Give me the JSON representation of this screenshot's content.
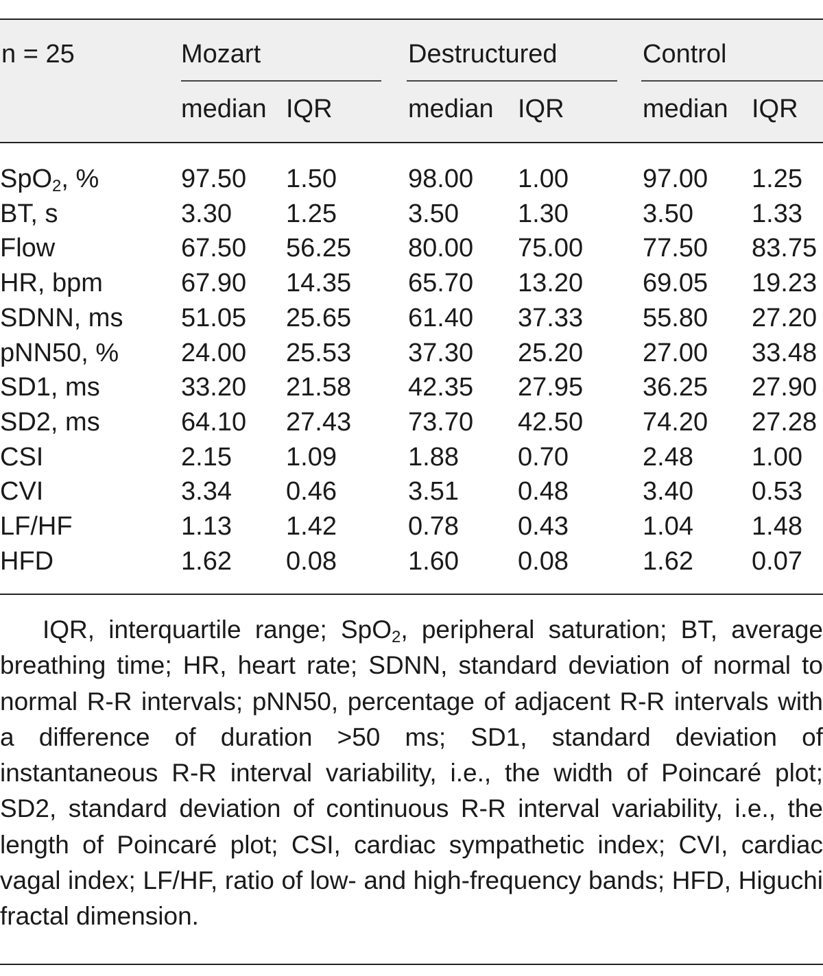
{
  "table": {
    "n_label": "n = 25",
    "groups": [
      "Mozart",
      "Destructured",
      "Control"
    ],
    "sub_headers": [
      "median",
      "IQR"
    ],
    "rows": [
      {
        "label": "SpO",
        "label_sub": "2",
        "label_suffix": ", %",
        "values": [
          "97.50",
          "1.50",
          "98.00",
          "1.00",
          "97.00",
          "1.25"
        ]
      },
      {
        "label": "BT, s",
        "label_sub": "",
        "label_suffix": "",
        "values": [
          "3.30",
          "1.25",
          "3.50",
          "1.30",
          "3.50",
          "1.33"
        ]
      },
      {
        "label": "Flow",
        "label_sub": "",
        "label_suffix": "",
        "values": [
          "67.50",
          "56.25",
          "80.00",
          "75.00",
          "77.50",
          "83.75"
        ]
      },
      {
        "label": "HR, bpm",
        "label_sub": "",
        "label_suffix": "",
        "values": [
          "67.90",
          "14.35",
          "65.70",
          "13.20",
          "69.05",
          "19.23"
        ]
      },
      {
        "label": "SDNN, ms",
        "label_sub": "",
        "label_suffix": "",
        "values": [
          "51.05",
          "25.65",
          "61.40",
          "37.33",
          "55.80",
          "27.20"
        ]
      },
      {
        "label": "pNN50, %",
        "label_sub": "",
        "label_suffix": "",
        "values": [
          "24.00",
          "25.53",
          "37.30",
          "25.20",
          "27.00",
          "33.48"
        ]
      },
      {
        "label": "SD1, ms",
        "label_sub": "",
        "label_suffix": "",
        "values": [
          "33.20",
          "21.58",
          "42.35",
          "27.95",
          "36.25",
          "27.90"
        ]
      },
      {
        "label": "SD2, ms",
        "label_sub": "",
        "label_suffix": "",
        "values": [
          "64.10",
          "27.43",
          "73.70",
          "42.50",
          "74.20",
          "27.28"
        ]
      },
      {
        "label": "CSI",
        "label_sub": "",
        "label_suffix": "",
        "values": [
          "2.15",
          "1.09",
          "1.88",
          "0.70",
          "2.48",
          "1.00"
        ]
      },
      {
        "label": "CVI",
        "label_sub": "",
        "label_suffix": "",
        "values": [
          "3.34",
          "0.46",
          "3.51",
          "0.48",
          "3.40",
          "0.53"
        ]
      },
      {
        "label": "LF/HF",
        "label_sub": "",
        "label_suffix": "",
        "values": [
          "1.13",
          "1.42",
          "0.78",
          "0.43",
          "1.04",
          "1.48"
        ]
      },
      {
        "label": "HFD",
        "label_sub": "",
        "label_suffix": "",
        "values": [
          "1.62",
          "0.08",
          "1.60",
          "0.08",
          "1.62",
          "0.07"
        ]
      }
    ]
  },
  "footnote": {
    "part1": "IQR, interquartile range; SpO",
    "part1_sub": "2",
    "part2": ", peripheral saturation; BT, average breathing time; HR, heart rate; SDNN, standard deviation of normal to normal R-R intervals; pNN50, percentage of adjacent R-R intervals with a difference of duration >50 ms; SD1, standard deviation of instantaneous R-R interval variability, i.e., the width of Poincaré plot; SD2, standard deviation of continuous R-R interval variability, i.e., the length of Poincaré plot; CSI, cardiac sympathetic index; CVI, cardiac vagal index; LF/HF, ratio of low- and high-frequency bands; HFD, Higuchi fractal dimension."
  }
}
